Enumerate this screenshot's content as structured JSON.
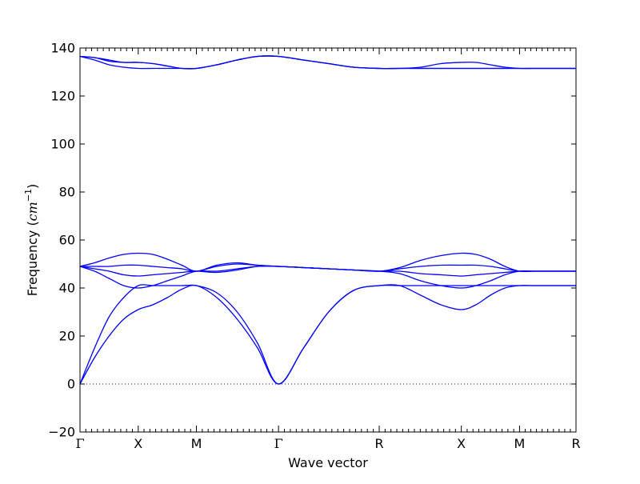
{
  "chart_data": {
    "type": "line",
    "title": "",
    "xlabel": "Wave vector",
    "ylabel": {
      "prefix": "Frequency (",
      "unit_base": "cm",
      "unit_exp": "−1",
      "suffix": ")"
    },
    "ylim": [
      -20,
      140
    ],
    "yticks": [
      -20,
      0,
      20,
      40,
      60,
      80,
      100,
      120,
      140
    ],
    "xlim": [
      0,
      8.52
    ],
    "high_symmetry_points": [
      {
        "label": "Γ",
        "x": 0
      },
      {
        "label": "X",
        "x": 1.0
      },
      {
        "label": "M",
        "x": 2.0
      },
      {
        "label": "Γ",
        "x": 3.41
      },
      {
        "label": "R",
        "x": 5.14
      },
      {
        "label": "X",
        "x": 6.55
      },
      {
        "label": "M",
        "x": 7.55
      },
      {
        "label": "R",
        "x": 8.52
      }
    ],
    "zero_line": {
      "y": 0,
      "style": "dotted"
    },
    "grid": false,
    "line_color": "#0000ff",
    "series": [
      {
        "x": [
          0,
          0.25,
          0.5,
          0.75,
          1,
          1.25,
          1.5,
          1.75,
          2,
          2.35,
          2.7,
          3.05,
          3.41,
          3.84,
          4.27,
          4.7,
          5.14,
          5.49,
          5.85,
          6.2,
          6.55,
          6.8,
          7.05,
          7.3,
          7.55,
          7.79,
          8.04,
          8.28,
          8.52
        ],
        "values": [
          0,
          11,
          20,
          27,
          31,
          33,
          36,
          39.5,
          41,
          36,
          27,
          15,
          0,
          15,
          30,
          39,
          41,
          41,
          37,
          33,
          31,
          33,
          37,
          40,
          41,
          41,
          41,
          41,
          41
        ]
      },
      {
        "x": [
          0,
          0.25,
          0.5,
          0.75,
          1,
          1.25,
          1.5,
          1.75,
          2,
          2.35,
          2.7,
          3.05,
          3.41,
          3.84,
          4.27,
          4.7,
          5.14,
          5.49,
          5.85,
          6.2,
          6.55,
          6.8,
          7.05,
          7.3,
          7.55,
          7.79,
          8.04,
          8.28,
          8.52
        ],
        "values": [
          0,
          15,
          28,
          36,
          41,
          41,
          41,
          41,
          41,
          38,
          30,
          17,
          0,
          15,
          30,
          39,
          41,
          41,
          41,
          41,
          41,
          41,
          41,
          41,
          41,
          41,
          41,
          41,
          41
        ]
      },
      {
        "x": [
          0,
          0.25,
          0.5,
          0.75,
          1,
          1.25,
          1.5,
          1.75,
          2,
          2.35,
          2.7,
          3.05,
          3.41,
          3.84,
          4.27,
          4.7,
          5.14,
          5.49,
          5.85,
          6.2,
          6.55,
          6.8,
          7.05,
          7.3,
          7.55,
          7.79,
          8.04,
          8.28,
          8.52
        ],
        "values": [
          49,
          47,
          44,
          41,
          40,
          41,
          43,
          45,
          47,
          47,
          48,
          49,
          49,
          48.5,
          48,
          47.5,
          47,
          46,
          43,
          41,
          40,
          41,
          43,
          45.5,
          47,
          47,
          47,
          47,
          47
        ]
      },
      {
        "x": [
          0,
          0.25,
          0.5,
          0.75,
          1,
          1.25,
          1.5,
          1.75,
          2,
          2.35,
          2.7,
          3.05,
          3.41,
          3.84,
          4.27,
          4.7,
          5.14,
          5.49,
          5.85,
          6.2,
          6.55,
          6.8,
          7.05,
          7.3,
          7.55,
          7.79,
          8.04,
          8.28,
          8.52
        ],
        "values": [
          49,
          48,
          47,
          45.5,
          45,
          45.5,
          46,
          46.5,
          47,
          46.5,
          47.5,
          49,
          49,
          48.5,
          48,
          47.5,
          47,
          47,
          46,
          45.5,
          45,
          45.5,
          46,
          46.5,
          47,
          47,
          47,
          47,
          47
        ]
      },
      {
        "x": [
          0,
          0.25,
          0.5,
          0.75,
          1,
          1.25,
          1.5,
          1.75,
          2,
          2.35,
          2.7,
          3.05,
          3.41,
          3.84,
          4.27,
          4.7,
          5.14,
          5.49,
          5.85,
          6.2,
          6.55,
          6.8,
          7.05,
          7.3,
          7.55,
          7.79,
          8.04,
          8.28,
          8.52
        ],
        "values": [
          49,
          49,
          49,
          49.5,
          49.5,
          49,
          48.5,
          48,
          47,
          49,
          50,
          49.5,
          49,
          48.5,
          48,
          47.5,
          47,
          48,
          49,
          49.5,
          49.5,
          49.5,
          49,
          48,
          47,
          47,
          47,
          47,
          47
        ]
      },
      {
        "x": [
          0,
          0.25,
          0.5,
          0.75,
          1,
          1.25,
          1.5,
          1.75,
          2,
          2.35,
          2.7,
          3.05,
          3.41,
          3.84,
          4.27,
          4.7,
          5.14,
          5.49,
          5.85,
          6.2,
          6.55,
          6.8,
          7.05,
          7.3,
          7.55,
          7.79,
          8.04,
          8.28,
          8.52
        ],
        "values": [
          49,
          50.5,
          52.5,
          54,
          54.5,
          54,
          52,
          49.5,
          47,
          49.5,
          50.5,
          49.5,
          49,
          48.5,
          48,
          47.5,
          47,
          48.5,
          51.5,
          53.5,
          54.5,
          54,
          52,
          49,
          47,
          47,
          47,
          47,
          47
        ]
      },
      {
        "x": [
          0,
          0.25,
          0.5,
          0.75,
          1,
          1.25,
          1.5,
          1.75,
          2,
          2.35,
          2.7,
          3.05,
          3.41,
          3.84,
          4.27,
          4.7,
          5.14,
          5.49,
          5.85,
          6.2,
          6.55,
          6.8,
          7.05,
          7.3,
          7.55,
          7.79,
          8.04,
          8.28,
          8.52
        ],
        "values": [
          136.5,
          136,
          134.5,
          134,
          134,
          133.5,
          132.5,
          131.5,
          131.5,
          133,
          135,
          136.5,
          136.5,
          135,
          133.5,
          132,
          131.5,
          131.5,
          132,
          133.5,
          134,
          134,
          133,
          132,
          131.5,
          131.5,
          131.5,
          131.5,
          131.5
        ]
      },
      {
        "x": [
          0,
          0.25,
          0.5,
          0.75,
          1,
          1.25,
          1.5,
          1.75,
          2,
          2.35,
          2.7,
          3.05,
          3.41,
          3.84,
          4.27,
          4.7,
          5.14,
          5.49,
          5.85,
          6.2,
          6.55,
          6.8,
          7.05,
          7.3,
          7.55,
          7.79,
          8.04,
          8.28,
          8.52
        ],
        "values": [
          136.5,
          135,
          133,
          132,
          131.5,
          131.5,
          131.5,
          131.5,
          131.5,
          133,
          135,
          136.5,
          136.5,
          135,
          133.5,
          132,
          131.5,
          131.5,
          131.5,
          131.5,
          131.5,
          131.5,
          131.5,
          131.5,
          131.5,
          131.5,
          131.5,
          131.5,
          131.5
        ]
      },
      {
        "x": [
          0,
          0.25,
          0.5,
          0.75,
          1,
          1.25,
          1.5,
          1.75,
          2,
          2.35,
          2.7,
          3.05,
          3.41,
          3.84,
          4.27,
          4.7,
          5.14,
          5.49,
          5.85,
          6.2,
          6.55,
          6.8,
          7.05,
          7.3,
          7.55,
          7.79,
          8.04,
          8.28,
          8.52
        ],
        "values": [
          136.5,
          136,
          135,
          134,
          134,
          133.5,
          132.5,
          131.5,
          131.5,
          133,
          135,
          136.5,
          136.5,
          135,
          133.5,
          132,
          131.5,
          131.5,
          131.5,
          131.5,
          131.5,
          131.5,
          131.5,
          131.5,
          131.5,
          131.5,
          131.5,
          131.5,
          131.5
        ]
      }
    ]
  }
}
